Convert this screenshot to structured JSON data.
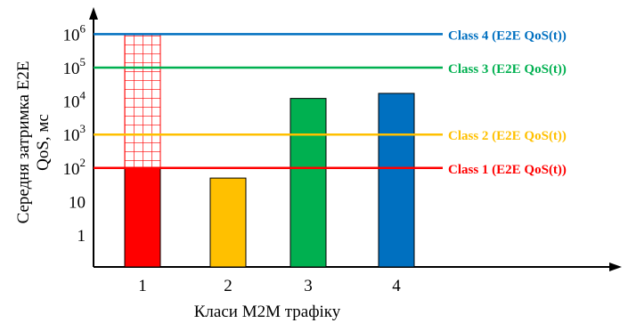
{
  "chart_data": {
    "type": "bar",
    "title": "",
    "xlabel": "Класи M2M трафіку",
    "ylabel_line1": "Середня затримка E2E",
    "ylabel_line2": "QoS, мс",
    "yscale": "log",
    "ylim": [
      0.1,
      1000000
    ],
    "categories": [
      "1",
      "2",
      "3",
      "4"
    ],
    "values": [
      100,
      50,
      12000,
      17000
    ],
    "bar_colors": [
      "#ff0000",
      "#ffc000",
      "#00b050",
      "#0070c0"
    ],
    "y_ticks": [
      {
        "value": 1,
        "base": "1",
        "exp": ""
      },
      {
        "value": 10,
        "base": "10",
        "exp": ""
      },
      {
        "value": 100,
        "base": "10",
        "exp": "2"
      },
      {
        "value": 1000,
        "base": "10",
        "exp": "3"
      },
      {
        "value": 10000,
        "base": "10",
        "exp": "4"
      },
      {
        "value": 100000,
        "base": "10",
        "exp": "5"
      },
      {
        "value": 1000000,
        "base": "10",
        "exp": "6"
      }
    ],
    "hatched_segment": {
      "category": "1",
      "from": 100,
      "to": 1000000,
      "color": "#ff0000"
    },
    "threshold_lines": [
      {
        "label": "Class 4 (E2E QoS(t))",
        "value": 1000000,
        "color": "#0070c0"
      },
      {
        "label": "Class 3  (E2E QoS(t))",
        "value": 100000,
        "color": "#00b050"
      },
      {
        "label": "Class 2  (E2E QoS(t))",
        "value": 1000,
        "color": "#ffc000"
      },
      {
        "label": "Class 1  (E2E QoS(t))",
        "value": 100,
        "color": "#ff0000"
      }
    ],
    "grid": false,
    "legend": "none"
  }
}
